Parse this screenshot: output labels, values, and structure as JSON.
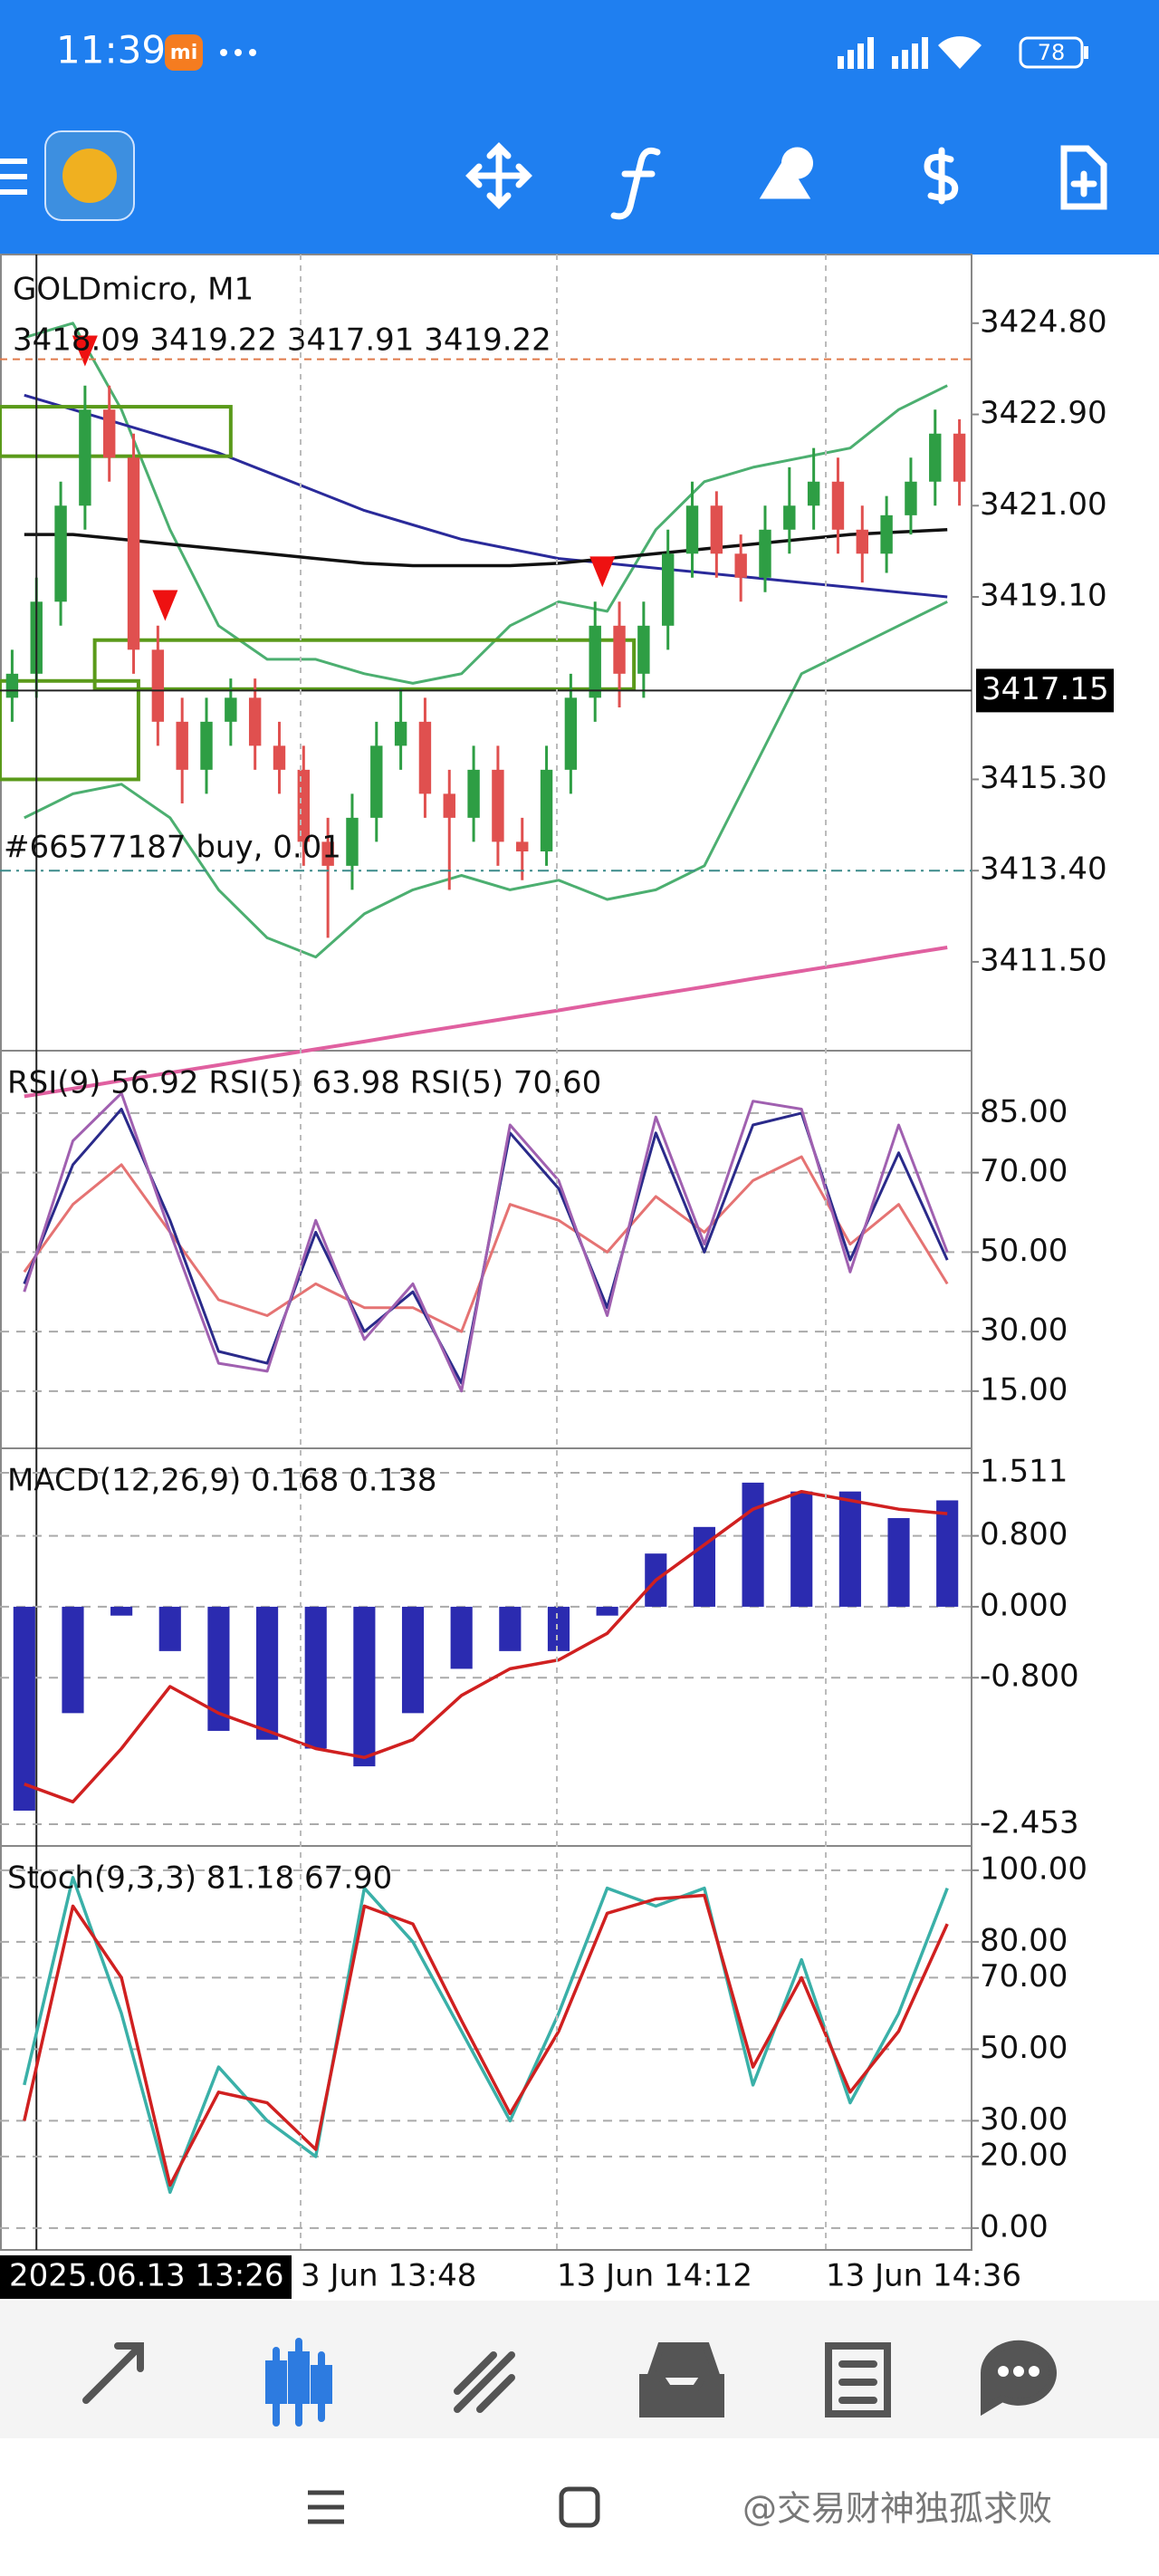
{
  "status_bar": {
    "time": "11:39",
    "battery": "78"
  },
  "chart": {
    "symbol": "GOLDmicro, M1",
    "ohlc": "3418.09 3419.22 3417.91 3419.22",
    "order": {
      "label": "#66577187 buy, 0.01",
      "price": 3413.4
    },
    "current_price": {
      "label": "3417.15",
      "value": 3417.15
    },
    "level_line": {
      "value": 3424.05,
      "color": "#e07a4a"
    },
    "cursor_index": 1.5,
    "ylim": [
      3409.65,
      3426.23
    ],
    "yticks": [
      {
        "value": 3424.8,
        "label": "3424.80"
      },
      {
        "value": 3422.9,
        "label": "3422.90"
      },
      {
        "value": 3421.0,
        "label": "3421.00"
      },
      {
        "value": 3419.1,
        "label": "3419.10"
      },
      {
        "value": 3415.3,
        "label": "3415.30"
      },
      {
        "value": 3413.4,
        "label": "3413.40"
      },
      {
        "value": 3411.5,
        "label": "3411.50"
      }
    ],
    "candles": {
      "up_color": "#2e9e44",
      "down_color": "#e0504f",
      "open": [
        3417,
        3417.5,
        3419,
        3421,
        3423,
        3422,
        3418,
        3416.5,
        3415.5,
        3416.5,
        3417,
        3416,
        3415.5,
        3414,
        3413.5,
        3414.5,
        3416,
        3416.5,
        3415,
        3414.5,
        3415.5,
        3414,
        3413.8,
        3415.5,
        3417,
        3418.5,
        3417.5,
        3418.5,
        3420,
        3421,
        3420,
        3419.5,
        3420.5,
        3421,
        3421.5,
        3420.5,
        3420,
        3420.8,
        3421.5,
        3422.5
      ],
      "high": [
        3418,
        3419.5,
        3421.5,
        3423.5,
        3423.5,
        3422.5,
        3418.5,
        3417,
        3417,
        3417.4,
        3417.4,
        3416.5,
        3416,
        3414.5,
        3415,
        3416.5,
        3417.2,
        3417,
        3415.5,
        3416,
        3416,
        3414.5,
        3416,
        3417.5,
        3419,
        3419,
        3419,
        3420.5,
        3421.5,
        3421.3,
        3420.4,
        3421,
        3421.8,
        3422.2,
        3422,
        3421,
        3421.2,
        3422,
        3423,
        3422.8
      ],
      "low": [
        3416.5,
        3417,
        3418.5,
        3420.5,
        3421.5,
        3417.5,
        3416,
        3414.8,
        3415,
        3416,
        3415.5,
        3415,
        3413.5,
        3412,
        3413,
        3414,
        3415.5,
        3414.5,
        3413,
        3414,
        3413.5,
        3413.2,
        3413.5,
        3415,
        3416.5,
        3416.8,
        3417,
        3418,
        3419.5,
        3419.5,
        3419,
        3419.2,
        3420,
        3420.5,
        3420,
        3419.4,
        3419.6,
        3420.4,
        3421,
        3421
      ],
      "close": [
        3417.5,
        3419,
        3421,
        3423,
        3422,
        3418,
        3416.5,
        3415.5,
        3416.5,
        3417,
        3416,
        3415.5,
        3414,
        3413.5,
        3414.5,
        3416,
        3416.5,
        3415,
        3414.5,
        3415.5,
        3414,
        3413.8,
        3415.5,
        3417,
        3418.5,
        3417.5,
        3418.5,
        3420,
        3421,
        3420,
        3419.5,
        3420.5,
        3421,
        3421.5,
        3420.5,
        3420,
        3420.8,
        3421.5,
        3422.5,
        3421.5
      ]
    },
    "ma_blue": {
      "color": "#2a2a9a",
      "values": [
        3423.3,
        3423.0,
        3422.7,
        3422.4,
        3422.1,
        3421.7,
        3421.3,
        3420.9,
        3420.6,
        3420.3,
        3420.1,
        3419.9,
        3419.8,
        3419.7,
        3419.6,
        3419.5,
        3419.4,
        3419.3,
        3419.2,
        3419.1
      ]
    },
    "ma_black": {
      "color": "#111111",
      "values": [
        3420.4,
        3420.4,
        3420.3,
        3420.2,
        3420.1,
        3420.0,
        3419.9,
        3419.8,
        3419.75,
        3419.75,
        3419.75,
        3419.8,
        3419.9,
        3420.0,
        3420.1,
        3420.2,
        3420.3,
        3420.4,
        3420.45,
        3420.5
      ]
    },
    "trend_line": {
      "color": "#e060a0",
      "values": [
        3408.7,
        3408.86,
        3409.03,
        3409.19,
        3409.35,
        3409.52,
        3409.68,
        3409.84,
        3410.01,
        3410.17,
        3410.33,
        3410.49,
        3410.66,
        3410.82,
        3410.98,
        3411.15,
        3411.31,
        3411.47,
        3411.64,
        3411.8
      ]
    },
    "band_upper": {
      "color": "#4caf70",
      "values": [
        3424.5,
        3424.8,
        3423.0,
        3420.5,
        3418.5,
        3417.8,
        3417.8,
        3417.5,
        3417.3,
        3417.5,
        3418.5,
        3419.0,
        3418.8,
        3420.5,
        3421.5,
        3421.8,
        3422.0,
        3422.2,
        3423.0,
        3423.5
      ]
    },
    "band_lower": {
      "color": "#4caf70",
      "values": [
        3414.5,
        3415.0,
        3415.2,
        3414.5,
        3413.0,
        3412.0,
        3411.6,
        3412.5,
        3413.0,
        3413.3,
        3413.0,
        3413.2,
        3412.8,
        3413.0,
        3413.5,
        3415.5,
        3417.5,
        3418.0,
        3418.5,
        3419.0
      ]
    },
    "boxes": {
      "color": "#5a9a1a",
      "items": [
        {
          "from": 0,
          "to": 9.5,
          "top": 3423.06,
          "bottom": 3422.03
        },
        {
          "from": 3.9,
          "to": 26.1,
          "top": 3418.2,
          "bottom": 3417.18
        },
        {
          "from": 0,
          "to": 5.7,
          "top": 3417.35,
          "bottom": 3415.3
        }
      ]
    },
    "arrows": {
      "color": "#ee1111",
      "items": [
        {
          "index": 3,
          "price": 3423.9
        },
        {
          "index": 6.3,
          "price": 3418.6
        },
        {
          "index": 24.3,
          "price": 3419.3
        }
      ]
    }
  },
  "rsi": {
    "label": "RSI(9) 56.92 RSI(5) 63.98 RSI(5) 70.60",
    "ylim": [
      0.6,
      100.7
    ],
    "yticks": [
      {
        "value": 85,
        "label": "85.00"
      },
      {
        "value": 70,
        "label": "70.00"
      },
      {
        "value": 50,
        "label": "50.00"
      },
      {
        "value": 30,
        "label": "30.00"
      },
      {
        "value": 15,
        "label": "15.00"
      }
    ],
    "series": [
      {
        "color": "#e57373",
        "values": [
          45,
          62,
          72,
          55,
          38,
          34,
          42,
          36,
          36,
          30,
          62,
          58,
          50,
          64,
          55,
          68,
          74,
          52,
          62,
          42
        ]
      },
      {
        "color": "#2a2a8a",
        "values": [
          42,
          72,
          86,
          58,
          25,
          22,
          55,
          30,
          40,
          17,
          80,
          66,
          36,
          80,
          50,
          82,
          85,
          48,
          75,
          48
        ]
      },
      {
        "color": "#a060b0",
        "values": [
          40,
          78,
          90,
          55,
          22,
          20,
          58,
          28,
          42,
          15,
          82,
          68,
          34,
          84,
          52,
          88,
          86,
          45,
          82,
          50
        ]
      }
    ]
  },
  "macd": {
    "label": "MACD(12,26,9) 0.168 0.138",
    "ylim": [
      -2.698,
      1.787
    ],
    "yticks": [
      1.511,
      {
        "value": 0.8,
        "label": "0.800"
      },
      {
        "value": 0,
        "label": "0.000"
      },
      {
        "value": -0.8,
        "label": "-0.800"
      },
      -2.453
    ],
    "histogram": {
      "color": "#2b2bb0",
      "values": [
        -2.3,
        -1.2,
        -0.1,
        -0.5,
        -1.4,
        -1.5,
        -1.6,
        -1.8,
        -1.2,
        -0.7,
        -0.5,
        -0.5,
        -0.1,
        0.6,
        0.9,
        1.4,
        1.3,
        1.3,
        1.0,
        1.2
      ]
    },
    "signal": {
      "color": "#d02020",
      "values": [
        -2.0,
        -2.2,
        -1.6,
        -0.9,
        -1.2,
        -1.4,
        -1.6,
        -1.7,
        -1.5,
        -1.0,
        -0.7,
        -0.6,
        -0.3,
        0.3,
        0.7,
        1.1,
        1.3,
        1.2,
        1.1,
        1.05
      ]
    }
  },
  "stoch": {
    "label": "Stoch(9,3,3) 81.18 67.90",
    "ylim": [
      -6.1,
      106.8
    ],
    "yticks": [
      {
        "value": 100,
        "label": "100.00"
      },
      {
        "value": 80,
        "label": "80.00"
      },
      {
        "value": 70,
        "label": "70.00"
      },
      {
        "value": 50,
        "label": "50.00"
      },
      {
        "value": 30,
        "label": "30.00"
      },
      {
        "value": 20,
        "label": "20.00"
      },
      {
        "value": 0,
        "label": "0.00"
      }
    ],
    "main": {
      "color": "#3ab0a8",
      "values": [
        40,
        98,
        60,
        10,
        45,
        30,
        20,
        95,
        80,
        55,
        30,
        60,
        95,
        90,
        95,
        40,
        75,
        35,
        60,
        95
      ]
    },
    "signal": {
      "color": "#d02020",
      "values": [
        30,
        90,
        70,
        12,
        38,
        35,
        22,
        90,
        85,
        58,
        32,
        55,
        88,
        92,
        93,
        45,
        70,
        38,
        55,
        85
      ]
    }
  },
  "time_axis": {
    "cursor_label": "2025.06.13 13:26",
    "labels": [
      "3 Jun 13:48",
      "13 Jun 14:12",
      "13 Jun 14:36"
    ]
  },
  "watermark": "@交易财神独孤求败"
}
